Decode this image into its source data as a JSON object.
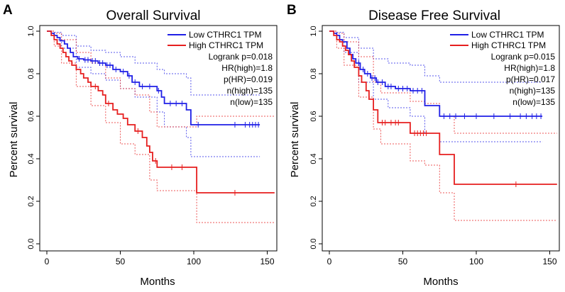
{
  "chart_data": [
    {
      "panel_label": "A",
      "type": "line",
      "title": "Overall Survival",
      "xlabel": "Months",
      "ylabel": "Percent survival",
      "xlim": [
        0,
        155
      ],
      "ylim": [
        0,
        1.05
      ],
      "x_ticks": [
        "0",
        "50",
        "100",
        "150"
      ],
      "y_ticks": [
        "0.0",
        "0.2",
        "0.4",
        "0.6",
        "0.8",
        "1.0"
      ],
      "legend": [
        "Low CTHRC1 TPM",
        "High CTHRC1 TPM"
      ],
      "stats": [
        "Logrank p=0.018",
        "HR(high)=1.8",
        "p(HR)=0.019",
        "n(high)=135",
        "n(low)=135"
      ],
      "colors": {
        "low": "#1f1fe6",
        "high": "#e61f1f"
      },
      "series": [
        {
          "name": "Low CTHRC1 TPM",
          "key": "low",
          "steps": [
            [
              0,
              1.0
            ],
            [
              3,
              0.99
            ],
            [
              5,
              0.98
            ],
            [
              7,
              0.97
            ],
            [
              9,
              0.955
            ],
            [
              12,
              0.94
            ],
            [
              14,
              0.92
            ],
            [
              16,
              0.9
            ],
            [
              18,
              0.88
            ],
            [
              21,
              0.87
            ],
            [
              25,
              0.865
            ],
            [
              30,
              0.86
            ],
            [
              35,
              0.85
            ],
            [
              40,
              0.84
            ],
            [
              45,
              0.82
            ],
            [
              50,
              0.81
            ],
            [
              55,
              0.79
            ],
            [
              58,
              0.76
            ],
            [
              63,
              0.74
            ],
            [
              75,
              0.72
            ],
            [
              78,
              0.69
            ],
            [
              80,
              0.66
            ],
            [
              95,
              0.63
            ],
            [
              98,
              0.56
            ],
            [
              145,
              0.56
            ]
          ],
          "censor_x": [
            22,
            26,
            28,
            31,
            33,
            36,
            38,
            41,
            43,
            47,
            52,
            56,
            60,
            65,
            70,
            76,
            84,
            88,
            92,
            103,
            128,
            135,
            138,
            140,
            142,
            144
          ],
          "ci_upper": [
            [
              0,
              1.0
            ],
            [
              5,
              0.995
            ],
            [
              10,
              0.98
            ],
            [
              20,
              0.93
            ],
            [
              30,
              0.91
            ],
            [
              40,
              0.9
            ],
            [
              50,
              0.88
            ],
            [
              60,
              0.85
            ],
            [
              75,
              0.82
            ],
            [
              80,
              0.8
            ],
            [
              95,
              0.78
            ],
            [
              98,
              0.7
            ],
            [
              145,
              0.7
            ]
          ],
          "ci_lower": [
            [
              0,
              1.0
            ],
            [
              5,
              0.96
            ],
            [
              10,
              0.92
            ],
            [
              20,
              0.83
            ],
            [
              30,
              0.8
            ],
            [
              40,
              0.77
            ],
            [
              50,
              0.73
            ],
            [
              60,
              0.69
            ],
            [
              75,
              0.62
            ],
            [
              80,
              0.55
            ],
            [
              95,
              0.5
            ],
            [
              98,
              0.41
            ],
            [
              145,
              0.41
            ]
          ]
        },
        {
          "name": "High CTHRC1 TPM",
          "key": "high",
          "steps": [
            [
              0,
              1.0
            ],
            [
              3,
              0.98
            ],
            [
              5,
              0.96
            ],
            [
              7,
              0.94
            ],
            [
              9,
              0.92
            ],
            [
              11,
              0.9
            ],
            [
              13,
              0.88
            ],
            [
              15,
              0.86
            ],
            [
              17,
              0.84
            ],
            [
              20,
              0.82
            ],
            [
              23,
              0.8
            ],
            [
              25,
              0.78
            ],
            [
              28,
              0.76
            ],
            [
              30,
              0.74
            ],
            [
              35,
              0.72
            ],
            [
              38,
              0.7
            ],
            [
              40,
              0.66
            ],
            [
              45,
              0.63
            ],
            [
              48,
              0.61
            ],
            [
              52,
              0.59
            ],
            [
              55,
              0.56
            ],
            [
              60,
              0.53
            ],
            [
              65,
              0.5
            ],
            [
              68,
              0.46
            ],
            [
              70,
              0.43
            ],
            [
              72,
              0.39
            ],
            [
              75,
              0.36
            ],
            [
              102,
              0.24
            ],
            [
              155,
              0.24
            ]
          ],
          "censor_x": [
            33,
            42,
            62,
            74,
            85,
            92,
            128
          ],
          "ci_upper": [
            [
              0,
              1.0
            ],
            [
              5,
              0.99
            ],
            [
              10,
              0.96
            ],
            [
              20,
              0.9
            ],
            [
              30,
              0.85
            ],
            [
              40,
              0.78
            ],
            [
              50,
              0.73
            ],
            [
              60,
              0.7
            ],
            [
              70,
              0.62
            ],
            [
              75,
              0.55
            ],
            [
              85,
              0.55
            ],
            [
              102,
              0.6
            ],
            [
              155,
              0.6
            ]
          ],
          "ci_lower": [
            [
              0,
              1.0
            ],
            [
              5,
              0.93
            ],
            [
              10,
              0.85
            ],
            [
              20,
              0.74
            ],
            [
              30,
              0.65
            ],
            [
              40,
              0.57
            ],
            [
              50,
              0.47
            ],
            [
              60,
              0.42
            ],
            [
              70,
              0.3
            ],
            [
              75,
              0.25
            ],
            [
              85,
              0.25
            ],
            [
              102,
              0.1
            ],
            [
              155,
              0.1
            ]
          ]
        }
      ]
    },
    {
      "panel_label": "B",
      "type": "line",
      "title": "Disease Free Survival",
      "xlabel": "Months",
      "ylabel": "Percent survival",
      "xlim": [
        0,
        155
      ],
      "ylim": [
        0,
        1.05
      ],
      "x_ticks": [
        "0",
        "50",
        "100",
        "150"
      ],
      "y_ticks": [
        "0.0",
        "0.2",
        "0.4",
        "0.6",
        "0.8",
        "1.0"
      ],
      "legend": [
        "Low CTHRC1 TPM",
        "High CTHRC1 TPM"
      ],
      "stats": [
        "Logrank p=0.015",
        "HR(high)=1.8",
        "p(HR)=0.017",
        "n(high)=135",
        "n(low)=135"
      ],
      "colors": {
        "low": "#1f1fe6",
        "high": "#e61f1f"
      },
      "series": [
        {
          "name": "Low CTHRC1 TPM",
          "key": "low",
          "steps": [
            [
              0,
              1.0
            ],
            [
              3,
              0.99
            ],
            [
              5,
              0.98
            ],
            [
              7,
              0.96
            ],
            [
              9,
              0.95
            ],
            [
              12,
              0.92
            ],
            [
              14,
              0.89
            ],
            [
              16,
              0.87
            ],
            [
              18,
              0.85
            ],
            [
              21,
              0.82
            ],
            [
              24,
              0.8
            ],
            [
              28,
              0.78
            ],
            [
              32,
              0.76
            ],
            [
              38,
              0.74
            ],
            [
              45,
              0.73
            ],
            [
              55,
              0.72
            ],
            [
              65,
              0.65
            ],
            [
              75,
              0.6
            ],
            [
              145,
              0.6
            ]
          ],
          "censor_x": [
            20,
            23,
            26,
            29,
            31,
            33,
            36,
            40,
            42,
            47,
            50,
            53,
            57,
            60,
            63,
            78,
            82,
            86,
            92,
            100,
            112,
            123,
            130,
            134,
            138,
            141,
            144
          ],
          "ci_upper": [
            [
              0,
              1.0
            ],
            [
              5,
              0.995
            ],
            [
              10,
              0.97
            ],
            [
              20,
              0.92
            ],
            [
              30,
              0.87
            ],
            [
              40,
              0.85
            ],
            [
              55,
              0.84
            ],
            [
              65,
              0.79
            ],
            [
              75,
              0.76
            ],
            [
              145,
              0.76
            ]
          ],
          "ci_lower": [
            [
              0,
              1.0
            ],
            [
              5,
              0.96
            ],
            [
              10,
              0.9
            ],
            [
              20,
              0.76
            ],
            [
              30,
              0.68
            ],
            [
              40,
              0.64
            ],
            [
              55,
              0.6
            ],
            [
              65,
              0.52
            ],
            [
              75,
              0.48
            ],
            [
              145,
              0.48
            ]
          ]
        },
        {
          "name": "High CTHRC1 TPM",
          "key": "high",
          "steps": [
            [
              0,
              1.0
            ],
            [
              3,
              0.98
            ],
            [
              5,
              0.96
            ],
            [
              7,
              0.95
            ],
            [
              9,
              0.93
            ],
            [
              11,
              0.91
            ],
            [
              13,
              0.89
            ],
            [
              15,
              0.86
            ],
            [
              17,
              0.83
            ],
            [
              20,
              0.79
            ],
            [
              22,
              0.76
            ],
            [
              25,
              0.72
            ],
            [
              27,
              0.68
            ],
            [
              30,
              0.63
            ],
            [
              33,
              0.57
            ],
            [
              55,
              0.52
            ],
            [
              65,
              0.52
            ],
            [
              75,
              0.42
            ],
            [
              85,
              0.28
            ],
            [
              155,
              0.28
            ]
          ],
          "censor_x": [
            36,
            38,
            42,
            45,
            47,
            58,
            60,
            62,
            64,
            66,
            127
          ],
          "ci_upper": [
            [
              0,
              1.0
            ],
            [
              5,
              0.99
            ],
            [
              10,
              0.95
            ],
            [
              20,
              0.88
            ],
            [
              30,
              0.76
            ],
            [
              35,
              0.71
            ],
            [
              55,
              0.67
            ],
            [
              65,
              0.66
            ],
            [
              75,
              0.6
            ],
            [
              85,
              0.52
            ],
            [
              155,
              0.52
            ]
          ],
          "ci_lower": [
            [
              0,
              1.0
            ],
            [
              5,
              0.92
            ],
            [
              10,
              0.84
            ],
            [
              20,
              0.69
            ],
            [
              30,
              0.54
            ],
            [
              35,
              0.47
            ],
            [
              55,
              0.39
            ],
            [
              65,
              0.37
            ],
            [
              75,
              0.24
            ],
            [
              85,
              0.11
            ],
            [
              155,
              0.11
            ]
          ]
        }
      ]
    }
  ]
}
